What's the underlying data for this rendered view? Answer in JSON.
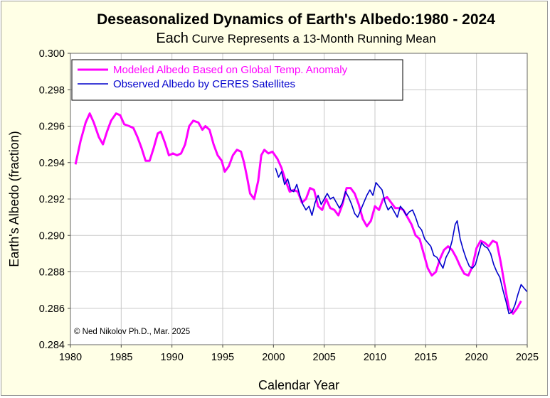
{
  "chart_data": {
    "type": "line",
    "title": "Deseasonalized Dynamics of Earth's Albedo:1980 - 2024",
    "subtitle_lead": "Each",
    "subtitle_rest": " Curve Represents a 13-Month Running Mean",
    "xlabel": "Calendar Year",
    "ylabel": "Earth's Albedo (fraction)",
    "xlim": [
      1980,
      2025
    ],
    "ylim": [
      0.284,
      0.3
    ],
    "xticks": [
      "1980",
      "1985",
      "1990",
      "1995",
      "2000",
      "2005",
      "2010",
      "2015",
      "2020",
      "2025"
    ],
    "yticks": [
      "0.284",
      "0.286",
      "0.288",
      "0.290",
      "0.292",
      "0.294",
      "0.296",
      "0.298",
      "0.300"
    ],
    "grid": true,
    "legend_position": "top-left",
    "credit": "© Ned Nikolov Ph.D., Mar. 2025",
    "series": [
      {
        "name": "Modeled Albedo Based on Global Temp. Anomaly",
        "color": "#ff00ff",
        "x": [
          1980.5,
          1981.0,
          1981.5,
          1981.9,
          1982.3,
          1982.8,
          1983.2,
          1983.6,
          1984.0,
          1984.5,
          1984.9,
          1985.3,
          1985.8,
          1986.2,
          1986.6,
          1987.0,
          1987.4,
          1987.8,
          1988.2,
          1988.6,
          1988.9,
          1989.3,
          1989.7,
          1990.1,
          1990.5,
          1990.9,
          1991.3,
          1991.7,
          1992.1,
          1992.6,
          1993.0,
          1993.3,
          1993.7,
          1994.1,
          1994.5,
          1994.9,
          1995.2,
          1995.6,
          1996.0,
          1996.4,
          1996.8,
          1997.1,
          1997.4,
          1997.7,
          1998.1,
          1998.5,
          1998.8,
          1999.1,
          1999.5,
          1999.9,
          2000.4,
          2000.8,
          2001.2,
          2001.6,
          2002.0,
          2002.4,
          2002.8,
          2003.2,
          2003.6,
          2004.0,
          2004.4,
          2004.8,
          2005.2,
          2005.6,
          2006.0,
          2006.4,
          2006.8,
          2007.2,
          2007.6,
          2008.0,
          2008.4,
          2008.8,
          2009.2,
          2009.6,
          2010.0,
          2010.4,
          2010.8,
          2011.2,
          2011.6,
          2012.0,
          2012.4,
          2012.8,
          2013.2,
          2013.6,
          2014.0,
          2014.4,
          2014.8,
          2015.2,
          2015.6,
          2016.0,
          2016.4,
          2016.8,
          2017.2,
          2017.6,
          2018.0,
          2018.4,
          2018.8,
          2019.2,
          2019.6,
          2020.0,
          2020.4,
          2020.8,
          2021.2,
          2021.6,
          2022.0,
          2022.4,
          2022.8,
          2023.2,
          2023.6,
          2024.0,
          2024.4
        ],
        "y": [
          0.2939,
          0.2952,
          0.2962,
          0.2967,
          0.2962,
          0.2954,
          0.295,
          0.2957,
          0.2963,
          0.2967,
          0.2966,
          0.2961,
          0.296,
          0.2959,
          0.2954,
          0.2948,
          0.2941,
          0.2941,
          0.2948,
          0.2956,
          0.2957,
          0.2951,
          0.2944,
          0.2945,
          0.2944,
          0.2945,
          0.295,
          0.296,
          0.2963,
          0.2962,
          0.2958,
          0.296,
          0.2958,
          0.295,
          0.2944,
          0.2941,
          0.2935,
          0.2938,
          0.2944,
          0.2947,
          0.2946,
          0.294,
          0.2932,
          0.2923,
          0.292,
          0.293,
          0.2944,
          0.2947,
          0.2945,
          0.2946,
          0.2942,
          0.2937,
          0.293,
          0.2924,
          0.2925,
          0.2924,
          0.2918,
          0.292,
          0.2926,
          0.2925,
          0.2916,
          0.2914,
          0.292,
          0.2915,
          0.2914,
          0.2911,
          0.2917,
          0.2926,
          0.2926,
          0.2923,
          0.2917,
          0.2909,
          0.2905,
          0.2908,
          0.2916,
          0.2914,
          0.292,
          0.2921,
          0.2918,
          0.2915,
          0.2915,
          0.2914,
          0.291,
          0.2906,
          0.29,
          0.2898,
          0.289,
          0.2882,
          0.2878,
          0.288,
          0.2887,
          0.2892,
          0.2894,
          0.2892,
          0.2888,
          0.2883,
          0.2879,
          0.2878,
          0.2883,
          0.2893,
          0.2897,
          0.2896,
          0.2894,
          0.2897,
          0.2896,
          0.2885,
          0.2872,
          0.286,
          0.2857,
          0.286,
          0.2864
        ]
      },
      {
        "name": "Observed Albedo by CERES Satellites",
        "color": "#0000cc",
        "x": [
          2000.2,
          2000.5,
          2000.8,
          2001.1,
          2001.4,
          2001.7,
          2002.0,
          2002.3,
          2002.6,
          2002.9,
          2003.2,
          2003.5,
          2003.8,
          2004.1,
          2004.4,
          2004.7,
          2005.0,
          2005.3,
          2005.6,
          2005.9,
          2006.2,
          2006.5,
          2006.8,
          2007.1,
          2007.4,
          2007.7,
          2008.0,
          2008.3,
          2008.6,
          2008.9,
          2009.2,
          2009.5,
          2009.8,
          2010.1,
          2010.4,
          2010.7,
          2011.0,
          2011.3,
          2011.6,
          2011.9,
          2012.2,
          2012.5,
          2012.8,
          2013.1,
          2013.4,
          2013.7,
          2014.0,
          2014.3,
          2014.6,
          2014.9,
          2015.2,
          2015.5,
          2015.8,
          2016.1,
          2016.4,
          2016.7,
          2017.0,
          2017.3,
          2017.6,
          2017.9,
          2018.1,
          2018.4,
          2018.7,
          2019.0,
          2019.3,
          2019.6,
          2019.9,
          2020.2,
          2020.5,
          2020.8,
          2021.1,
          2021.4,
          2021.7,
          2022.0,
          2022.3,
          2022.6,
          2022.9,
          2023.2,
          2023.5,
          2023.8,
          2024.1,
          2024.4,
          2024.7,
          2025.0
        ],
        "y": [
          0.2937,
          0.2932,
          0.2935,
          0.2928,
          0.2931,
          0.2925,
          0.2924,
          0.2928,
          0.2922,
          0.2917,
          0.2914,
          0.2916,
          0.2911,
          0.2918,
          0.2922,
          0.2917,
          0.292,
          0.2923,
          0.292,
          0.2921,
          0.2918,
          0.2915,
          0.2918,
          0.2924,
          0.2921,
          0.2917,
          0.2912,
          0.291,
          0.2914,
          0.2918,
          0.2922,
          0.2925,
          0.2922,
          0.2929,
          0.2927,
          0.2925,
          0.2918,
          0.2914,
          0.2916,
          0.2913,
          0.291,
          0.2916,
          0.2914,
          0.2911,
          0.2913,
          0.2914,
          0.291,
          0.2905,
          0.2903,
          0.2898,
          0.2896,
          0.2894,
          0.2889,
          0.2888,
          0.2885,
          0.2882,
          0.2888,
          0.2891,
          0.2897,
          0.2906,
          0.2908,
          0.2898,
          0.2892,
          0.2887,
          0.2883,
          0.2882,
          0.2884,
          0.289,
          0.2896,
          0.2894,
          0.2893,
          0.289,
          0.2884,
          0.288,
          0.2877,
          0.287,
          0.2864,
          0.2857,
          0.2858,
          0.2862,
          0.2868,
          0.2873,
          0.2871,
          0.2869
        ]
      }
    ]
  }
}
